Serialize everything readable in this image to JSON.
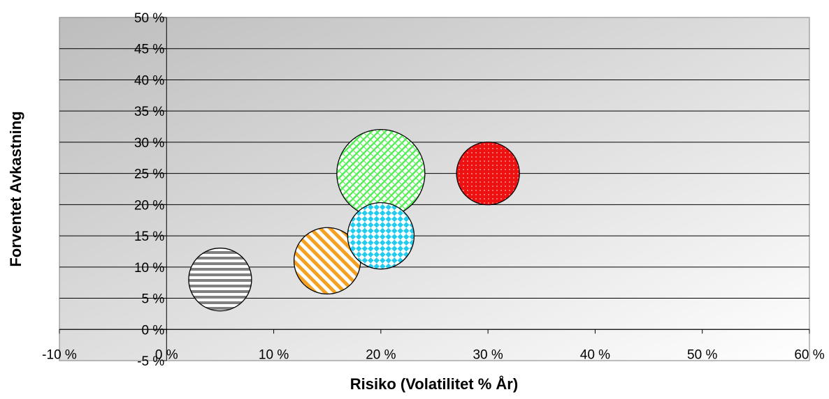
{
  "chart_data": {
    "type": "bubble",
    "title": "",
    "xlabel": "Risiko (Volatilitet % År)",
    "ylabel": "Forventet Avkastning",
    "xlim": [
      -10,
      60
    ],
    "ylim": [
      -5,
      50
    ],
    "x_ticks": [
      -10,
      0,
      10,
      20,
      30,
      40,
      50,
      60
    ],
    "y_ticks": [
      -5,
      0,
      5,
      10,
      15,
      20,
      25,
      30,
      35,
      40,
      45,
      50
    ],
    "x_tick_labels": [
      "-10 %",
      "0 %",
      "10 %",
      "20 %",
      "30 %",
      "40 %",
      "50 %",
      "60 %"
    ],
    "y_tick_labels": [
      "-5 %",
      "0 %",
      "5 %",
      "10 %",
      "15 %",
      "20 %",
      "25 %",
      "30 %",
      "35 %",
      "40 %",
      "45 %",
      "50 %"
    ],
    "grid": true,
    "legend": "none",
    "series": [
      {
        "x": 5,
        "y": 8,
        "size": 1.0,
        "color": "#808080",
        "pattern": "horizontal-stripes"
      },
      {
        "x": 15,
        "y": 11,
        "size": 1.12,
        "color": "#F4A020",
        "pattern": "diagonal-stripes"
      },
      {
        "x": 20,
        "y": 25,
        "size": 1.96,
        "color": "#55EE55",
        "pattern": "trellis"
      },
      {
        "x": 20,
        "y": 15,
        "size": 1.12,
        "color": "#22CCEE",
        "pattern": "checker"
      },
      {
        "x": 30,
        "y": 25,
        "size": 1.0,
        "color": "#EE1111",
        "pattern": "dots"
      }
    ]
  }
}
